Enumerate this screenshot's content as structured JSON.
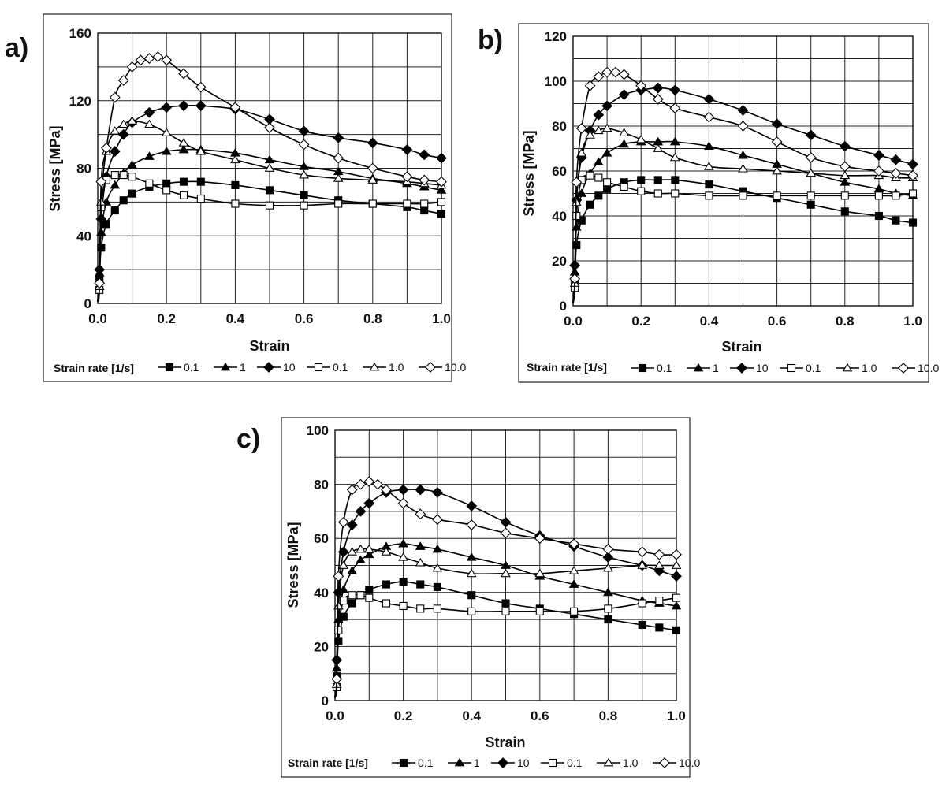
{
  "panels": [
    {
      "label": "a)",
      "ylabel": "Stress [MPa]",
      "xlabel": "Strain",
      "ylim": [
        0,
        160
      ],
      "yticks": [
        0,
        40,
        80,
        120,
        160
      ],
      "ygrid_step": 20,
      "xlim": [
        0,
        1.0
      ],
      "xticks": [
        "0.0",
        "0.2",
        "0.4",
        "0.6",
        "0.8",
        "1.0"
      ],
      "legend_title": "Strain rate [1/s]",
      "legend_labels": [
        "0.1",
        "1",
        "10",
        "0.1",
        "1.0",
        "10.0"
      ]
    },
    {
      "label": "b)",
      "ylabel": "Stress [MPa]",
      "xlabel": "Strain",
      "ylim": [
        0,
        120
      ],
      "yticks": [
        0,
        20,
        40,
        60,
        80,
        100,
        120
      ],
      "ygrid_step": 10,
      "xlim": [
        0,
        1.0
      ],
      "xticks": [
        "0.0",
        "0.2",
        "0.4",
        "0.6",
        "0.8",
        "1.0"
      ],
      "legend_title": "Strain rate [1/s]",
      "legend_labels": [
        "0.1",
        "1",
        "10",
        "0.1",
        "1.0",
        "10.0"
      ]
    },
    {
      "label": "c)",
      "ylabel": "Stress [MPa]",
      "xlabel": "Strain",
      "ylim": [
        0,
        100
      ],
      "yticks": [
        0,
        20,
        40,
        60,
        80,
        100
      ],
      "ygrid_step": 10,
      "xlim": [
        0,
        1.0
      ],
      "xticks": [
        "0.0",
        "0.2",
        "0.4",
        "0.6",
        "0.8",
        "1.0"
      ],
      "legend_title": "Strain rate [1/s]",
      "legend_labels": [
        "0.1",
        "1",
        "10",
        "0.1",
        "1.0",
        "10.0"
      ]
    }
  ],
  "chart_data": [
    {
      "type": "line",
      "title": "a)",
      "xlabel": "Strain",
      "ylabel": "Stress [MPa]",
      "xlim": [
        0,
        1.0
      ],
      "ylim": [
        0,
        160
      ],
      "grid": true,
      "legend_title": "Strain rate [1/s]",
      "series": [
        {
          "name": "0.1",
          "marker": "square-filled",
          "x": [
            0.0,
            0.005,
            0.01,
            0.025,
            0.05,
            0.075,
            0.1,
            0.15,
            0.2,
            0.25,
            0.3,
            0.4,
            0.5,
            0.6,
            0.7,
            0.8,
            0.9,
            0.95,
            1.0
          ],
          "y": [
            1,
            14,
            33,
            47,
            55,
            61,
            65,
            69,
            71,
            72,
            72,
            70,
            67,
            64,
            61,
            59,
            57,
            55,
            53
          ]
        },
        {
          "name": "1",
          "marker": "triangle-filled",
          "x": [
            0.0,
            0.005,
            0.01,
            0.025,
            0.05,
            0.075,
            0.1,
            0.15,
            0.2,
            0.25,
            0.3,
            0.4,
            0.5,
            0.6,
            0.7,
            0.8,
            0.9,
            0.95,
            1.0
          ],
          "y": [
            1,
            18,
            42,
            60,
            70,
            77,
            82,
            87,
            90,
            91,
            91,
            89,
            85,
            81,
            78,
            74,
            71,
            69,
            67
          ]
        },
        {
          "name": "10",
          "marker": "diamond-filled",
          "x": [
            0.0,
            0.005,
            0.01,
            0.025,
            0.05,
            0.075,
            0.1,
            0.15,
            0.2,
            0.25,
            0.3,
            0.4,
            0.5,
            0.6,
            0.7,
            0.8,
            0.9,
            0.95,
            1.0
          ],
          "y": [
            1,
            20,
            50,
            75,
            90,
            100,
            107,
            113,
            116,
            117,
            117,
            115,
            109,
            102,
            98,
            95,
            91,
            88,
            86
          ]
        },
        {
          "name": "0.1",
          "marker": "square-open",
          "x": [
            0.0,
            0.005,
            0.01,
            0.025,
            0.05,
            0.075,
            0.1,
            0.15,
            0.2,
            0.25,
            0.3,
            0.4,
            0.5,
            0.6,
            0.7,
            0.8,
            0.9,
            0.95,
            1.0
          ],
          "y": [
            1,
            8,
            57,
            73,
            76,
            76,
            75,
            71,
            67,
            64,
            62,
            59,
            58,
            58,
            59,
            59,
            59,
            59,
            60
          ]
        },
        {
          "name": "1.0",
          "marker": "triangle-open",
          "x": [
            0.0,
            0.005,
            0.01,
            0.025,
            0.05,
            0.075,
            0.1,
            0.15,
            0.2,
            0.25,
            0.3,
            0.4,
            0.5,
            0.6,
            0.7,
            0.8,
            0.9,
            0.95,
            1.0
          ],
          "y": [
            1,
            10,
            60,
            90,
            102,
            106,
            108,
            106,
            101,
            95,
            90,
            85,
            80,
            76,
            74,
            73,
            72,
            71,
            70
          ]
        },
        {
          "name": "10.0",
          "marker": "diamond-open",
          "x": [
            0.0,
            0.005,
            0.01,
            0.025,
            0.05,
            0.075,
            0.1,
            0.125,
            0.15,
            0.175,
            0.2,
            0.25,
            0.3,
            0.4,
            0.5,
            0.6,
            0.7,
            0.8,
            0.9,
            0.95,
            1.0
          ],
          "y": [
            1,
            12,
            72,
            92,
            122,
            132,
            140,
            144,
            145,
            146,
            144,
            136,
            128,
            116,
            104,
            94,
            86,
            80,
            75,
            73,
            72
          ]
        }
      ]
    },
    {
      "type": "line",
      "title": "b)",
      "xlabel": "Strain",
      "ylabel": "Stress [MPa]",
      "xlim": [
        0,
        1.0
      ],
      "ylim": [
        0,
        120
      ],
      "grid": true,
      "legend_title": "Strain rate [1/s]",
      "series": [
        {
          "name": "0.1",
          "marker": "square-filled",
          "x": [
            0.0,
            0.005,
            0.01,
            0.025,
            0.05,
            0.075,
            0.1,
            0.15,
            0.2,
            0.25,
            0.3,
            0.4,
            0.5,
            0.6,
            0.7,
            0.8,
            0.9,
            0.95,
            1.0
          ],
          "y": [
            1,
            11,
            27,
            38,
            45,
            49,
            52,
            55,
            56,
            56,
            56,
            54,
            51,
            48,
            45,
            42,
            40,
            38,
            37
          ]
        },
        {
          "name": "1",
          "marker": "triangle-filled",
          "x": [
            0.0,
            0.005,
            0.01,
            0.025,
            0.05,
            0.075,
            0.1,
            0.15,
            0.2,
            0.25,
            0.3,
            0.4,
            0.5,
            0.6,
            0.7,
            0.8,
            0.9,
            0.95,
            1.0
          ],
          "y": [
            1,
            15,
            35,
            50,
            59,
            64,
            68,
            72,
            73,
            73,
            73,
            71,
            67,
            63,
            59,
            55,
            52,
            50,
            49
          ]
        },
        {
          "name": "10",
          "marker": "diamond-filled",
          "x": [
            0.0,
            0.005,
            0.01,
            0.025,
            0.05,
            0.075,
            0.1,
            0.15,
            0.2,
            0.25,
            0.3,
            0.4,
            0.5,
            0.6,
            0.7,
            0.8,
            0.9,
            0.95,
            1.0
          ],
          "y": [
            1,
            18,
            47,
            66,
            78,
            85,
            89,
            94,
            96,
            97,
            96,
            92,
            87,
            81,
            76,
            71,
            67,
            65,
            63
          ]
        },
        {
          "name": "0.1",
          "marker": "square-open",
          "x": [
            0.0,
            0.005,
            0.01,
            0.025,
            0.05,
            0.075,
            0.1,
            0.15,
            0.2,
            0.25,
            0.3,
            0.4,
            0.5,
            0.6,
            0.7,
            0.8,
            0.9,
            0.95,
            1.0
          ],
          "y": [
            1,
            8,
            40,
            56,
            58,
            57,
            55,
            53,
            51,
            50,
            50,
            49,
            49,
            49,
            49,
            49,
            49,
            49,
            50
          ]
        },
        {
          "name": "1.0",
          "marker": "triangle-open",
          "x": [
            0.0,
            0.005,
            0.01,
            0.025,
            0.05,
            0.075,
            0.1,
            0.15,
            0.2,
            0.25,
            0.3,
            0.4,
            0.5,
            0.6,
            0.7,
            0.8,
            0.9,
            0.95,
            1.0
          ],
          "y": [
            1,
            10,
            46,
            68,
            76,
            78,
            79,
            77,
            74,
            70,
            66,
            62,
            61,
            60,
            59,
            58,
            58,
            57,
            57
          ]
        },
        {
          "name": "10.0",
          "marker": "diamond-open",
          "x": [
            0.0,
            0.005,
            0.01,
            0.025,
            0.05,
            0.075,
            0.1,
            0.125,
            0.15,
            0.2,
            0.25,
            0.3,
            0.4,
            0.5,
            0.6,
            0.7,
            0.8,
            0.9,
            0.95,
            1.0
          ],
          "y": [
            1,
            12,
            55,
            79,
            98,
            102,
            104,
            104,
            103,
            98,
            92,
            88,
            84,
            80,
            73,
            66,
            62,
            60,
            59,
            58
          ]
        }
      ]
    },
    {
      "type": "line",
      "title": "c)",
      "xlabel": "Strain",
      "ylabel": "Stress [MPa]",
      "xlim": [
        0,
        1.0
      ],
      "ylim": [
        0,
        100
      ],
      "grid": true,
      "legend_title": "Strain rate [1/s]",
      "series": [
        {
          "name": "0.1",
          "marker": "square-filled",
          "x": [
            0.0,
            0.005,
            0.01,
            0.025,
            0.05,
            0.075,
            0.1,
            0.15,
            0.2,
            0.25,
            0.3,
            0.4,
            0.5,
            0.6,
            0.7,
            0.8,
            0.9,
            0.95,
            1.0
          ],
          "y": [
            1,
            9,
            22,
            31,
            36,
            39,
            41,
            43,
            44,
            43,
            42,
            39,
            36,
            34,
            32,
            30,
            28,
            27,
            26
          ]
        },
        {
          "name": "1",
          "marker": "triangle-filled",
          "x": [
            0.0,
            0.005,
            0.01,
            0.025,
            0.05,
            0.075,
            0.1,
            0.15,
            0.2,
            0.25,
            0.3,
            0.4,
            0.5,
            0.6,
            0.7,
            0.8,
            0.9,
            0.95,
            1.0
          ],
          "y": [
            1,
            12,
            30,
            41,
            48,
            52,
            54,
            57,
            58,
            57,
            56,
            53,
            50,
            46,
            43,
            40,
            37,
            36,
            35
          ]
        },
        {
          "name": "10",
          "marker": "diamond-filled",
          "x": [
            0.0,
            0.005,
            0.01,
            0.025,
            0.05,
            0.075,
            0.1,
            0.15,
            0.2,
            0.25,
            0.3,
            0.4,
            0.5,
            0.6,
            0.7,
            0.8,
            0.9,
            0.95,
            1.0
          ],
          "y": [
            1,
            15,
            40,
            55,
            65,
            70,
            73,
            77,
            78,
            78,
            77,
            72,
            66,
            61,
            57,
            53,
            50,
            48,
            46
          ]
        },
        {
          "name": "0.1",
          "marker": "square-open",
          "x": [
            0.0,
            0.005,
            0.01,
            0.025,
            0.05,
            0.075,
            0.1,
            0.15,
            0.2,
            0.25,
            0.3,
            0.4,
            0.5,
            0.6,
            0.7,
            0.8,
            0.9,
            0.95,
            1.0
          ],
          "y": [
            1,
            5,
            26,
            37,
            39,
            39,
            38,
            36,
            35,
            34,
            34,
            33,
            33,
            33,
            33,
            34,
            36,
            37,
            38
          ]
        },
        {
          "name": "1.0",
          "marker": "triangle-open",
          "x": [
            0.0,
            0.005,
            0.01,
            0.025,
            0.05,
            0.075,
            0.1,
            0.15,
            0.2,
            0.25,
            0.3,
            0.4,
            0.5,
            0.6,
            0.7,
            0.8,
            0.9,
            0.95,
            1.0
          ],
          "y": [
            1,
            6,
            35,
            50,
            55,
            56,
            56,
            55,
            53,
            51,
            49,
            47,
            47,
            47,
            48,
            49,
            50,
            50,
            50
          ]
        },
        {
          "name": "10.0",
          "marker": "diamond-open",
          "x": [
            0.0,
            0.005,
            0.01,
            0.025,
            0.05,
            0.075,
            0.1,
            0.125,
            0.15,
            0.2,
            0.25,
            0.3,
            0.4,
            0.5,
            0.6,
            0.7,
            0.8,
            0.9,
            0.95,
            1.0
          ],
          "y": [
            1,
            8,
            46,
            66,
            78,
            80,
            81,
            80,
            78,
            73,
            69,
            67,
            65,
            62,
            60,
            58,
            56,
            55,
            54,
            54
          ]
        }
      ]
    }
  ]
}
